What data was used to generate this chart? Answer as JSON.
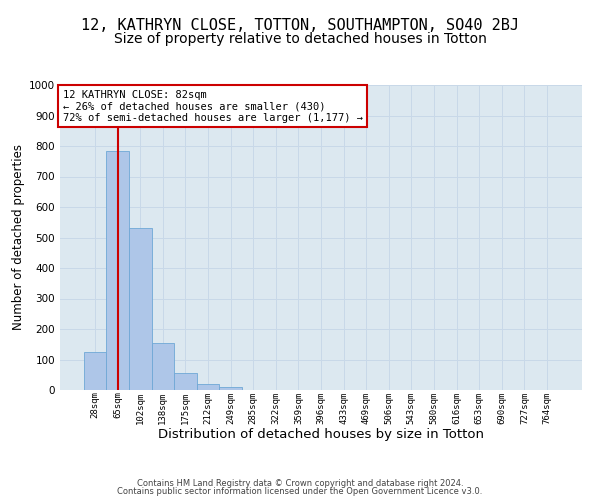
{
  "title": "12, KATHRYN CLOSE, TOTTON, SOUTHAMPTON, SO40 2BJ",
  "subtitle": "Size of property relative to detached houses in Totton",
  "xlabel": "Distribution of detached houses by size in Totton",
  "ylabel": "Number of detached properties",
  "footer_line1": "Contains HM Land Registry data © Crown copyright and database right 2024.",
  "footer_line2": "Contains public sector information licensed under the Open Government Licence v3.0.",
  "bin_labels": [
    "28sqm",
    "65sqm",
    "102sqm",
    "138sqm",
    "175sqm",
    "212sqm",
    "249sqm",
    "285sqm",
    "322sqm",
    "359sqm",
    "396sqm",
    "433sqm",
    "469sqm",
    "506sqm",
    "543sqm",
    "580sqm",
    "616sqm",
    "653sqm",
    "690sqm",
    "727sqm",
    "764sqm"
  ],
  "bar_values": [
    125,
    785,
    530,
    155,
    55,
    20,
    10,
    0,
    0,
    0,
    0,
    0,
    0,
    0,
    0,
    0,
    0,
    0,
    0,
    0,
    0
  ],
  "bar_color": "#aec6e8",
  "bar_edgecolor": "#6fa8d6",
  "annotation_text": "12 KATHRYN CLOSE: 82sqm\n← 26% of detached houses are smaller (430)\n72% of semi-detached houses are larger (1,177) →",
  "annotation_box_color": "#ffffff",
  "annotation_box_edgecolor": "#cc0000",
  "vline_color": "#cc0000",
  "vline_x": 1,
  "ylim": [
    0,
    1000
  ],
  "yticks": [
    0,
    100,
    200,
    300,
    400,
    500,
    600,
    700,
    800,
    900,
    1000
  ],
  "grid_color": "#c8d8e8",
  "bg_color": "#dce8f0",
  "title_fontsize": 11,
  "subtitle_fontsize": 10,
  "xlabel_fontsize": 9.5,
  "ylabel_fontsize": 8.5
}
